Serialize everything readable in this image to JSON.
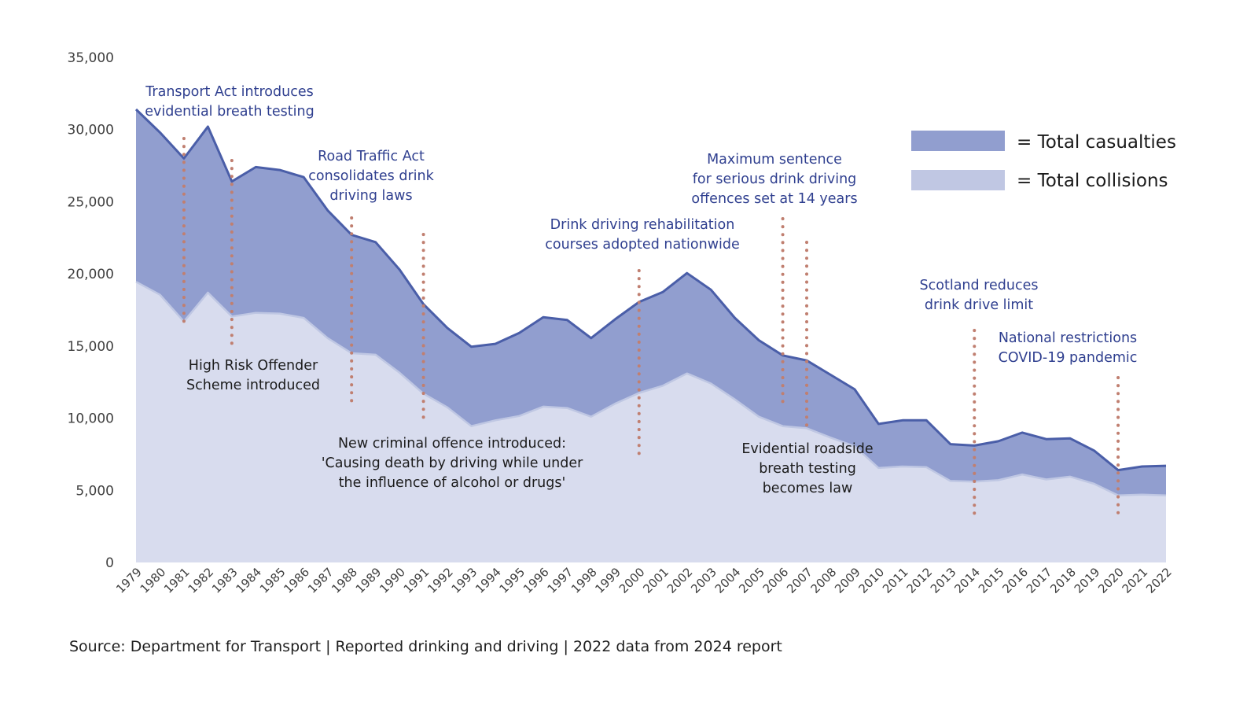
{
  "chart_data": {
    "type": "area",
    "title": "",
    "xlabel": "",
    "ylabel": "",
    "ylim": [
      0,
      35000
    ],
    "yticks": [
      0,
      5000,
      10000,
      15000,
      20000,
      25000,
      30000,
      35000
    ],
    "ytick_labels": [
      "0",
      "5,000",
      "10,000",
      "15,000",
      "20,000",
      "25,000",
      "30,000",
      "35,000"
    ],
    "grid": false,
    "x": [
      "1979",
      "1980",
      "1981",
      "1982",
      "1983",
      "1984",
      "1985",
      "1986",
      "1987",
      "1988",
      "1989",
      "1990",
      "1991",
      "1992",
      "1993",
      "1994",
      "1995",
      "1996",
      "1997",
      "1998",
      "1999",
      "2000",
      "2001",
      "2002",
      "2003",
      "2004",
      "2005",
      "2006",
      "2007",
      "2008",
      "2009",
      "2010",
      "2011",
      "2012",
      "2013",
      "2014",
      "2015",
      "2016",
      "2017",
      "2018",
      "2019",
      "2020",
      "2021",
      "2022"
    ],
    "series": [
      {
        "name": "Total casualties",
        "legend_label": "= Total casualties",
        "color": "#919ecf",
        "line_color": "#4a5ea8",
        "values": [
          31400,
          29800,
          28000,
          30200,
          26400,
          27400,
          27200,
          26700,
          24400,
          22700,
          22200,
          20300,
          17900,
          16250,
          14950,
          15150,
          15900,
          17000,
          16800,
          15550,
          16850,
          18050,
          18750,
          20050,
          18900,
          16950,
          15400,
          14350,
          14000,
          13000,
          12000,
          9600,
          9850,
          9850,
          8200,
          8100,
          8400,
          9000,
          8550,
          8600,
          7750,
          6400,
          6650,
          6700
        ]
      },
      {
        "name": "Total collisions",
        "legend_label": "= Total collisions",
        "color": "#d8dcee",
        "line_color": "#bfc7e3",
        "legend_color": "#c0c7e3",
        "values": [
          19450,
          18550,
          16700,
          18700,
          17050,
          17300,
          17250,
          16950,
          15550,
          14500,
          14400,
          13150,
          11700,
          10750,
          9450,
          9850,
          10150,
          10800,
          10700,
          10100,
          11000,
          11750,
          12250,
          13100,
          12400,
          11300,
          10100,
          9450,
          9300,
          8650,
          8050,
          6550,
          6650,
          6600,
          5650,
          5600,
          5700,
          6100,
          5750,
          5950,
          5450,
          4650,
          4700,
          4650
        ]
      }
    ],
    "legend_position": "top-right",
    "event_markers": [
      {
        "year": "1981",
        "color": "#c07f70"
      },
      {
        "year": "1983",
        "color": "#c07f70"
      },
      {
        "year": "1988",
        "color": "#c07f70"
      },
      {
        "year": "1991",
        "color": "#c07f70"
      },
      {
        "year": "2000",
        "color": "#c07f70"
      },
      {
        "year": "2006",
        "color": "#c07f70"
      },
      {
        "year": "2007",
        "color": "#c07f70"
      },
      {
        "year": "2014",
        "color": "#c07f70"
      },
      {
        "year": "2020",
        "color": "#c07f70"
      }
    ],
    "annotations": [
      {
        "id": "transport-act",
        "style": "blue",
        "lines": [
          "Transport Act introduces",
          "evidential breath testing"
        ]
      },
      {
        "id": "high-risk-offender",
        "style": "dark",
        "lines": [
          "High Risk Offender",
          "Scheme introduced"
        ]
      },
      {
        "id": "road-traffic-act",
        "style": "blue",
        "lines": [
          "Road Traffic Act",
          "consolidates drink",
          "driving laws"
        ]
      },
      {
        "id": "new-criminal-offence",
        "style": "dark",
        "lines": [
          "New criminal offence introduced:",
          "'Causing death by driving while under",
          "the influence of alcohol or drugs'"
        ]
      },
      {
        "id": "rehabilitation-courses",
        "style": "blue",
        "lines": [
          "Drink driving rehabilitation",
          "courses adopted nationwide"
        ]
      },
      {
        "id": "maximum-sentence",
        "style": "blue",
        "lines": [
          "Maximum sentence",
          "for serious drink driving",
          "offences set at 14 years"
        ]
      },
      {
        "id": "roadside-breath-testing",
        "style": "dark",
        "lines": [
          "Evidential roadside",
          "breath testing",
          "becomes law"
        ]
      },
      {
        "id": "scotland-limit",
        "style": "blue",
        "lines": [
          "Scotland reduces",
          "drink drive limit"
        ]
      },
      {
        "id": "covid-restrictions",
        "style": "blue",
        "lines": [
          "National restrictions",
          "COVID-19 pandemic"
        ]
      }
    ]
  },
  "source": "Source: Department for Transport | Reported drinking and driving | 2022 data from 2024 report"
}
